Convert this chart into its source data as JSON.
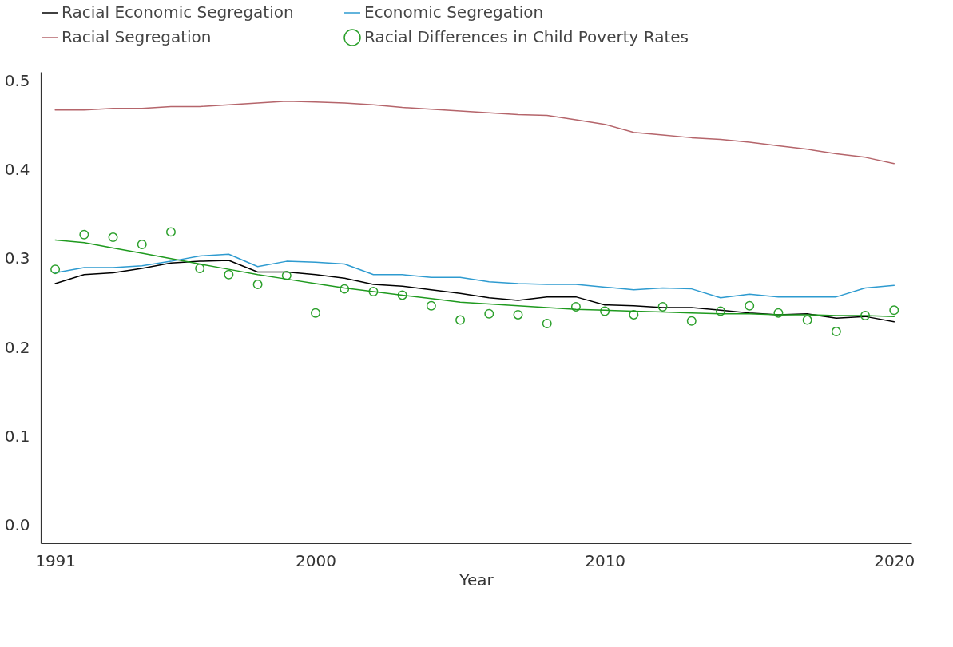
{
  "chart_data": {
    "type": "line",
    "xlabel": "Year",
    "x": [
      1991,
      1992,
      1993,
      1994,
      1995,
      1996,
      1997,
      1998,
      1999,
      2000,
      2001,
      2002,
      2003,
      2004,
      2005,
      2006,
      2007,
      2008,
      2009,
      2010,
      2011,
      2012,
      2013,
      2014,
      2015,
      2016,
      2017,
      2018,
      2019,
      2020
    ],
    "xlim": [
      1990.5,
      2020.6
    ],
    "xticks": [
      1991,
      2000,
      2010,
      2020
    ],
    "ylim": [
      -0.02,
      0.51
    ],
    "yticks": [
      {
        "value": 0,
        "label": "0.0"
      },
      0.1,
      0.2,
      0.3,
      0.4,
      0.5
    ],
    "grid": false,
    "legend": "top",
    "series": [
      {
        "name": "Racial Economic Segregation",
        "color": "#000000",
        "values": [
          0.272,
          0.282,
          0.284,
          0.289,
          0.295,
          0.297,
          0.298,
          0.285,
          0.285,
          0.282,
          0.278,
          0.271,
          0.269,
          0.265,
          0.261,
          0.256,
          0.253,
          0.257,
          0.257,
          0.248,
          0.247,
          0.245,
          0.245,
          0.242,
          0.239,
          0.237,
          0.238,
          0.233,
          0.235,
          0.229
        ]
      },
      {
        "name": "Economic Segregation",
        "color": "#2e9bd0",
        "values": [
          0.284,
          0.29,
          0.29,
          0.292,
          0.297,
          0.303,
          0.305,
          0.291,
          0.297,
          0.296,
          0.294,
          0.282,
          0.282,
          0.279,
          0.279,
          0.274,
          0.272,
          0.271,
          0.271,
          0.268,
          0.265,
          0.267,
          0.266,
          0.256,
          0.26,
          0.257,
          0.257,
          0.257,
          0.267,
          0.27
        ]
      },
      {
        "name": "Racial Segregation",
        "color": "#b5656b",
        "values": [
          0.467,
          0.467,
          0.469,
          0.469,
          0.471,
          0.471,
          0.473,
          0.475,
          0.477,
          0.476,
          0.475,
          0.473,
          0.47,
          0.468,
          0.466,
          0.464,
          0.462,
          0.461,
          0.456,
          0.451,
          0.442,
          0.439,
          0.436,
          0.434,
          0.431,
          0.427,
          0.423,
          0.418,
          0.414,
          0.407
        ]
      },
      {
        "name": "Racial Differences in Child Poverty Rates",
        "type": "scatter",
        "color": "#2ca02c",
        "values": [
          0.288,
          0.327,
          0.324,
          0.316,
          0.33,
          0.289,
          0.282,
          0.271,
          0.281,
          0.239,
          0.266,
          0.263,
          0.259,
          0.247,
          0.231,
          0.238,
          0.237,
          0.227,
          0.246,
          0.241,
          0.237,
          0.246,
          0.23,
          0.241,
          0.247,
          0.239,
          0.231,
          0.218,
          0.236,
          0.242
        ]
      },
      {
        "color": "#1f9a1f",
        "values": [
          0.321,
          0.318,
          0.312,
          0.306,
          0.3,
          0.294,
          0.288,
          0.282,
          0.277,
          0.272,
          0.267,
          0.263,
          0.259,
          0.255,
          0.251,
          0.249,
          0.247,
          0.245,
          0.243,
          0.242,
          0.241,
          0.24,
          0.239,
          0.238,
          0.238,
          0.237,
          0.237,
          0.236,
          0.236,
          0.235
        ]
      }
    ]
  }
}
